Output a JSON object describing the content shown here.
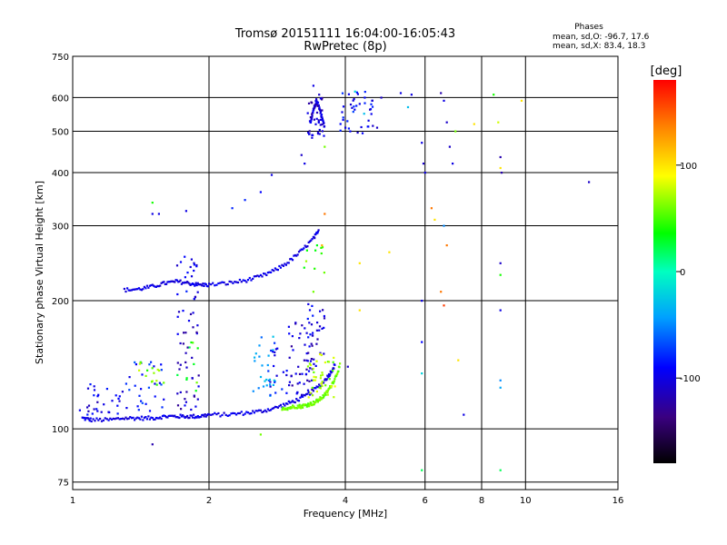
{
  "chart_data": {
    "type": "scatter",
    "title": "Tromsø 20151111 16:04:00-16:05:43",
    "subtitle": "RwPretec (8p)",
    "stats": {
      "title": "Phases",
      "line_o": "mean, sd,O: -96.7, 17.6",
      "line_x": "mean, sd,X:  83.4, 18.3"
    },
    "xlabel": "Frequency [MHz]",
    "ylabel": "Stationary phase Virtual Height [km]",
    "x_scale": "log",
    "y_scale": "log",
    "xlim": [
      1,
      16
    ],
    "ylim": [
      72,
      750
    ],
    "x_ticks": [
      1,
      2,
      4,
      6,
      8,
      10,
      16
    ],
    "y_ticks": [
      75,
      100,
      200,
      300,
      400,
      500,
      600,
      750
    ],
    "grid": true,
    "colorbar": {
      "label": "[deg]",
      "range": [
        -180,
        180
      ],
      "ticks": [
        100,
        0,
        -100
      ]
    },
    "traces": [
      {
        "name": "",
        "phase": -100,
        "x": [
          1.05,
          1.1,
          1.2,
          1.3,
          1.4,
          1.5,
          1.6,
          1.7,
          1.8,
          1.9,
          2.0,
          2.2,
          2.4,
          2.6,
          2.8,
          3.0,
          3.2,
          3.4,
          3.6,
          3.7,
          3.8
        ],
        "y": [
          106,
          105,
          105,
          106,
          106,
          106,
          107,
          107,
          107,
          107,
          108,
          108,
          109,
          110,
          112,
          115,
          118,
          123,
          130,
          135,
          142
        ]
      },
      {
        "name": "",
        "phase": -100,
        "x": [
          1.3,
          1.4,
          1.5,
          1.6,
          1.7,
          1.8,
          1.9,
          2.0,
          2.2,
          2.4,
          2.6,
          2.8,
          3.0,
          3.2,
          3.4,
          3.5
        ],
        "y": [
          212,
          213,
          216,
          220,
          222,
          220,
          218,
          218,
          220,
          223,
          228,
          236,
          247,
          262,
          280,
          292
        ]
      },
      {
        "name": "",
        "phase": 60,
        "x": [
          2.9,
          3.0,
          3.1,
          3.2,
          3.3,
          3.4,
          3.5,
          3.6,
          3.7,
          3.8,
          3.9
        ],
        "y": [
          112,
          112,
          113,
          113,
          114,
          115,
          117,
          120,
          125,
          132,
          142
        ]
      },
      {
        "name": "",
        "phase": -100,
        "x": [
          3.35,
          3.4,
          3.45,
          3.5,
          3.55,
          3.6
        ],
        "y": [
          520,
          560,
          590,
          570,
          540,
          510
        ]
      }
    ],
    "points": [
      {
        "x": 1.5,
        "y": 320,
        "phase": -100
      },
      {
        "x": 1.55,
        "y": 320,
        "phase": -100
      },
      {
        "x": 1.78,
        "y": 325,
        "phase": -100
      },
      {
        "x": 1.5,
        "y": 340,
        "phase": 40
      },
      {
        "x": 1.5,
        "y": 92,
        "phase": -120
      },
      {
        "x": 2.6,
        "y": 97,
        "phase": 60
      },
      {
        "x": 2.25,
        "y": 330,
        "phase": -80
      },
      {
        "x": 2.4,
        "y": 345,
        "phase": -80
      },
      {
        "x": 2.6,
        "y": 360,
        "phase": -90
      },
      {
        "x": 2.75,
        "y": 395,
        "phase": -100
      },
      {
        "x": 3.2,
        "y": 440,
        "phase": -110
      },
      {
        "x": 3.25,
        "y": 420,
        "phase": -100
      },
      {
        "x": 3.4,
        "y": 640,
        "phase": -100
      },
      {
        "x": 3.5,
        "y": 610,
        "phase": -110
      },
      {
        "x": 3.6,
        "y": 460,
        "phase": 60
      },
      {
        "x": 4.0,
        "y": 510,
        "phase": -100
      },
      {
        "x": 4.1,
        "y": 500,
        "phase": -90
      },
      {
        "x": 4.2,
        "y": 620,
        "phase": -20
      },
      {
        "x": 4.3,
        "y": 580,
        "phase": -100
      },
      {
        "x": 4.4,
        "y": 550,
        "phase": -30
      },
      {
        "x": 4.5,
        "y": 530,
        "phase": -100
      },
      {
        "x": 4.6,
        "y": 515,
        "phase": -110
      },
      {
        "x": 4.7,
        "y": 510,
        "phase": -110
      },
      {
        "x": 4.8,
        "y": 600,
        "phase": -110
      },
      {
        "x": 5.3,
        "y": 615,
        "phase": -100
      },
      {
        "x": 5.5,
        "y": 570,
        "phase": -30
      },
      {
        "x": 5.6,
        "y": 610,
        "phase": -100
      },
      {
        "x": 5.9,
        "y": 470,
        "phase": -100
      },
      {
        "x": 5.95,
        "y": 420,
        "phase": -110
      },
      {
        "x": 6.0,
        "y": 400,
        "phase": -100
      },
      {
        "x": 6.5,
        "y": 615,
        "phase": -120
      },
      {
        "x": 6.6,
        "y": 590,
        "phase": -100
      },
      {
        "x": 6.7,
        "y": 525,
        "phase": -110
      },
      {
        "x": 6.8,
        "y": 460,
        "phase": -110
      },
      {
        "x": 6.9,
        "y": 420,
        "phase": -100
      },
      {
        "x": 7.0,
        "y": 500,
        "phase": 60
      },
      {
        "x": 6.2,
        "y": 330,
        "phase": 140
      },
      {
        "x": 6.3,
        "y": 310,
        "phase": 100
      },
      {
        "x": 6.6,
        "y": 300,
        "phase": -50
      },
      {
        "x": 6.7,
        "y": 270,
        "phase": 140
      },
      {
        "x": 6.5,
        "y": 210,
        "phase": 140
      },
      {
        "x": 6.6,
        "y": 195,
        "phase": 160
      },
      {
        "x": 5.9,
        "y": 200,
        "phase": -100
      },
      {
        "x": 5.9,
        "y": 160,
        "phase": -90
      },
      {
        "x": 5.9,
        "y": 135,
        "phase": -20
      },
      {
        "x": 5.9,
        "y": 80,
        "phase": 20
      },
      {
        "x": 7.1,
        "y": 145,
        "phase": 100
      },
      {
        "x": 7.3,
        "y": 108,
        "phase": -100
      },
      {
        "x": 7.7,
        "y": 520,
        "phase": 100
      },
      {
        "x": 8.5,
        "y": 610,
        "phase": 40
      },
      {
        "x": 8.7,
        "y": 525,
        "phase": 80
      },
      {
        "x": 8.8,
        "y": 435,
        "phase": -120
      },
      {
        "x": 8.8,
        "y": 410,
        "phase": 100
      },
      {
        "x": 8.85,
        "y": 400,
        "phase": -120
      },
      {
        "x": 8.8,
        "y": 245,
        "phase": -110
      },
      {
        "x": 8.8,
        "y": 230,
        "phase": 40
      },
      {
        "x": 8.8,
        "y": 190,
        "phase": -100
      },
      {
        "x": 8.8,
        "y": 130,
        "phase": -50
      },
      {
        "x": 8.8,
        "y": 125,
        "phase": -40
      },
      {
        "x": 8.8,
        "y": 80,
        "phase": 20
      },
      {
        "x": 9.8,
        "y": 590,
        "phase": 100
      },
      {
        "x": 13.8,
        "y": 380,
        "phase": -110
      },
      {
        "x": 5.0,
        "y": 260,
        "phase": 100
      },
      {
        "x": 4.3,
        "y": 245,
        "phase": 100
      },
      {
        "x": 4.3,
        "y": 190,
        "phase": 100
      },
      {
        "x": 4.05,
        "y": 140,
        "phase": -110
      },
      {
        "x": 3.4,
        "y": 210,
        "phase": 60
      },
      {
        "x": 3.6,
        "y": 320,
        "phase": 140
      },
      {
        "x": 3.55,
        "y": 270,
        "phase": 120
      }
    ],
    "clusters": [
      {
        "xmin": 1.02,
        "xmax": 1.3,
        "ymin": 108,
        "ymax": 128,
        "phase": -100,
        "count": 30
      },
      {
        "xmin": 1.3,
        "xmax": 1.6,
        "ymin": 110,
        "ymax": 145,
        "phase": -80,
        "count": 30
      },
      {
        "xmin": 1.4,
        "xmax": 1.6,
        "ymin": 125,
        "ymax": 145,
        "phase": 60,
        "count": 15
      },
      {
        "xmin": 1.7,
        "xmax": 1.9,
        "ymin": 110,
        "ymax": 190,
        "phase": -110,
        "count": 40
      },
      {
        "xmin": 1.7,
        "xmax": 1.9,
        "ymin": 200,
        "ymax": 260,
        "phase": -100,
        "count": 20
      },
      {
        "xmin": 1.7,
        "xmax": 1.9,
        "ymin": 120,
        "ymax": 170,
        "phase": 40,
        "count": 10
      },
      {
        "xmin": 2.5,
        "xmax": 2.8,
        "ymin": 115,
        "ymax": 165,
        "phase": -40,
        "count": 25
      },
      {
        "xmin": 2.7,
        "xmax": 3.0,
        "ymin": 120,
        "ymax": 160,
        "phase": -90,
        "count": 20
      },
      {
        "xmin": 3.0,
        "xmax": 3.4,
        "ymin": 120,
        "ymax": 180,
        "phase": -110,
        "count": 50
      },
      {
        "xmin": 3.3,
        "xmax": 3.6,
        "ymin": 140,
        "ymax": 200,
        "phase": -100,
        "count": 30
      },
      {
        "xmin": 3.3,
        "xmax": 3.8,
        "ymin": 118,
        "ymax": 150,
        "phase": 70,
        "count": 40
      },
      {
        "xmin": 3.3,
        "xmax": 3.6,
        "ymin": 480,
        "ymax": 600,
        "phase": -110,
        "count": 40
      },
      {
        "xmin": 3.9,
        "xmax": 4.6,
        "ymin": 495,
        "ymax": 620,
        "phase": -90,
        "count": 35
      },
      {
        "xmin": 3.2,
        "xmax": 3.6,
        "ymin": 230,
        "ymax": 270,
        "phase": 50,
        "count": 10
      }
    ]
  }
}
